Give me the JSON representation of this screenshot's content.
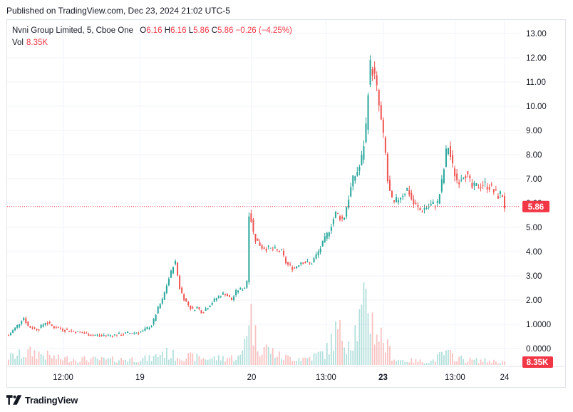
{
  "header": {
    "published": "Published on TradingView.com, Dec 23, 2024 21:02 UTC-5"
  },
  "legend": {
    "symbol": "Nvni Group Limited, 5, Cboe One",
    "open_label": "O",
    "open": "6.16",
    "high_label": "H",
    "high": "6.16",
    "low_label": "L",
    "low": "5.86",
    "close_label": "C",
    "close": "5.86",
    "change": "−0.26 (−4.25%)",
    "vol_label": "Vol",
    "vol": "8.35K"
  },
  "footer": {
    "brand": "TradingView"
  },
  "colors": {
    "up": "#26a69a",
    "down": "#ef5350",
    "last_price": "#f23645",
    "grid": "#f0f3fa",
    "axis_text": "#131722"
  },
  "chart_data": {
    "type": "candlestick",
    "price_axis_ticks": [
      "13.00",
      "12.00",
      "11.00",
      "10.00",
      "9.00",
      "8.00",
      "7.00",
      "6.00",
      "5.00",
      "4.00",
      "3.00",
      "2.00",
      "1.0000",
      "0.0000"
    ],
    "price_axis_values": [
      13,
      12,
      11,
      10,
      9,
      8,
      7,
      6,
      5,
      4,
      3,
      2,
      1,
      0
    ],
    "price_range": [
      0,
      13
    ],
    "time_ticks": [
      {
        "label": "12:00",
        "bold": false,
        "t": 0.11
      },
      {
        "label": "19",
        "bold": false,
        "t": 0.265
      },
      {
        "label": "20",
        "bold": false,
        "t": 0.49
      },
      {
        "label": "13:00",
        "bold": false,
        "t": 0.64
      },
      {
        "label": "23",
        "bold": true,
        "t": 0.755
      },
      {
        "label": "13:00",
        "bold": false,
        "t": 0.9
      },
      {
        "label": "24",
        "bold": false,
        "t": 1.0
      }
    ],
    "last_price": "5.86",
    "last_volume": "8.35K",
    "grid": true,
    "legend_position": "top-left",
    "close_path": [
      [
        0.0,
        0.55
      ],
      [
        0.02,
        1.0
      ],
      [
        0.03,
        1.3
      ],
      [
        0.04,
        0.9
      ],
      [
        0.06,
        0.8
      ],
      [
        0.075,
        1.1
      ],
      [
        0.09,
        0.9
      ],
      [
        0.12,
        0.75
      ],
      [
        0.15,
        0.65
      ],
      [
        0.17,
        0.55
      ],
      [
        0.21,
        0.55
      ],
      [
        0.25,
        0.65
      ],
      [
        0.27,
        0.7
      ],
      [
        0.29,
        1.0
      ],
      [
        0.3,
        1.6
      ],
      [
        0.31,
        2.0
      ],
      [
        0.32,
        2.7
      ],
      [
        0.33,
        3.3
      ],
      [
        0.335,
        3.7
      ],
      [
        0.345,
        2.5
      ],
      [
        0.355,
        2.0
      ],
      [
        0.37,
        1.6
      ],
      [
        0.38,
        1.7
      ],
      [
        0.39,
        1.5
      ],
      [
        0.405,
        1.8
      ],
      [
        0.42,
        2.1
      ],
      [
        0.435,
        2.3
      ],
      [
        0.45,
        2.0
      ],
      [
        0.46,
        2.4
      ],
      [
        0.475,
        2.5
      ],
      [
        0.48,
        2.6
      ],
      [
        0.485,
        5.8
      ],
      [
        0.495,
        4.6
      ],
      [
        0.51,
        4.2
      ],
      [
        0.53,
        4.1
      ],
      [
        0.55,
        4.0
      ],
      [
        0.56,
        3.5
      ],
      [
        0.575,
        3.3
      ],
      [
        0.59,
        3.6
      ],
      [
        0.61,
        3.5
      ],
      [
        0.625,
        4.0
      ],
      [
        0.64,
        4.6
      ],
      [
        0.66,
        5.6
      ],
      [
        0.675,
        5.3
      ],
      [
        0.685,
        6.2
      ],
      [
        0.695,
        7.0
      ],
      [
        0.71,
        7.6
      ],
      [
        0.72,
        9.0
      ],
      [
        0.725,
        10.8
      ],
      [
        0.73,
        11.8
      ],
      [
        0.74,
        11.0
      ],
      [
        0.75,
        9.5
      ],
      [
        0.76,
        8.0
      ],
      [
        0.765,
        6.7
      ],
      [
        0.775,
        5.9
      ],
      [
        0.79,
        6.3
      ],
      [
        0.805,
        6.6
      ],
      [
        0.815,
        6.0
      ],
      [
        0.83,
        5.7
      ],
      [
        0.85,
        5.9
      ],
      [
        0.865,
        6.0
      ],
      [
        0.875,
        7.0
      ],
      [
        0.885,
        8.5
      ],
      [
        0.895,
        7.5
      ],
      [
        0.905,
        6.9
      ],
      [
        0.92,
        7.3
      ],
      [
        0.935,
        6.6
      ],
      [
        0.955,
        6.8
      ],
      [
        0.97,
        6.7
      ],
      [
        0.985,
        6.3
      ],
      [
        0.995,
        6.4
      ],
      [
        1.0,
        5.86
      ]
    ],
    "volume_path": [
      [
        0.0,
        0.12
      ],
      [
        0.05,
        0.2
      ],
      [
        0.1,
        0.1
      ],
      [
        0.2,
        0.08
      ],
      [
        0.29,
        0.1
      ],
      [
        0.31,
        0.2
      ],
      [
        0.33,
        0.15
      ],
      [
        0.4,
        0.1
      ],
      [
        0.47,
        0.12
      ],
      [
        0.485,
        0.9
      ],
      [
        0.5,
        0.35
      ],
      [
        0.55,
        0.12
      ],
      [
        0.6,
        0.1
      ],
      [
        0.64,
        0.2
      ],
      [
        0.66,
        0.5
      ],
      [
        0.69,
        0.4
      ],
      [
        0.71,
        0.7
      ],
      [
        0.725,
        1.0
      ],
      [
        0.735,
        0.6
      ],
      [
        0.75,
        0.45
      ],
      [
        0.765,
        0.25
      ],
      [
        0.78,
        0.08
      ],
      [
        0.85,
        0.05
      ],
      [
        0.88,
        0.18
      ],
      [
        0.92,
        0.08
      ],
      [
        1.0,
        0.05
      ]
    ]
  }
}
